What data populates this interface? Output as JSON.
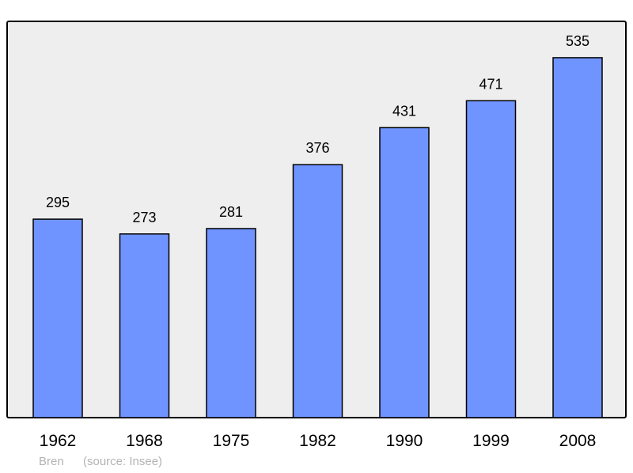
{
  "chart_data": {
    "type": "bar",
    "categories": [
      "1962",
      "1968",
      "1975",
      "1982",
      "1990",
      "1999",
      "2008"
    ],
    "values": [
      295,
      273,
      281,
      376,
      431,
      471,
      535
    ],
    "title": "",
    "xlabel": "",
    "ylabel": "",
    "ylim": [
      0,
      589
    ],
    "grid": false,
    "bar_color": "#7094ff",
    "plot_background": "#eeeeee"
  },
  "footer": {
    "place": "Bren",
    "source": "(source: Insee)"
  }
}
